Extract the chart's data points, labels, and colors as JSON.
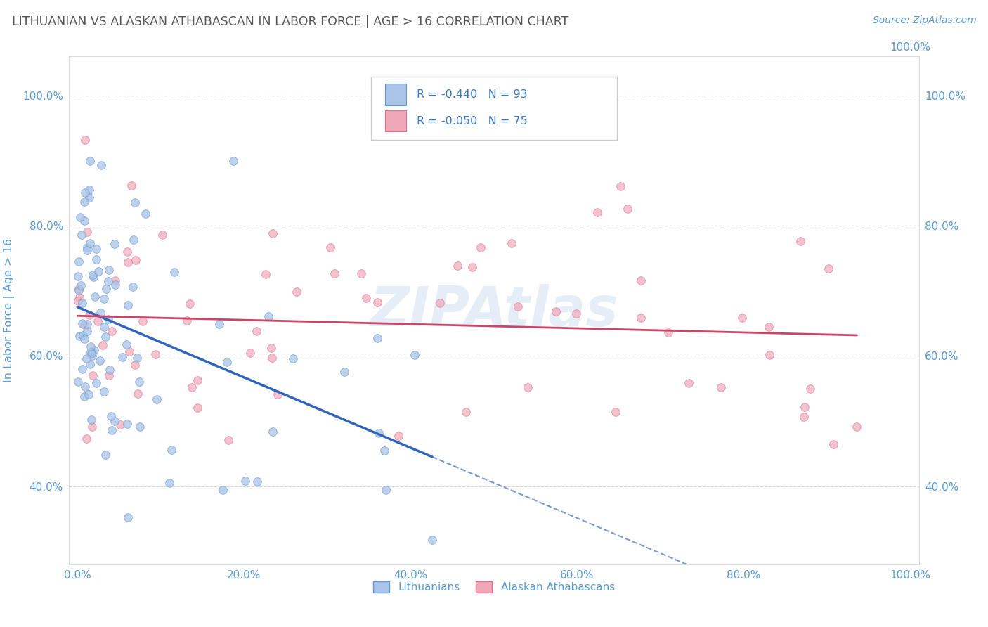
{
  "title": "LITHUANIAN VS ALASKAN ATHABASCAN IN LABOR FORCE | AGE > 16 CORRELATION CHART",
  "source": "Source: ZipAtlas.com",
  "ylabel": "In Labor Force | Age > 16",
  "xlim": [
    -0.01,
    1.01
  ],
  "ylim": [
    0.28,
    1.06
  ],
  "xticks": [
    0.0,
    0.2,
    0.4,
    0.6,
    0.8,
    1.0
  ],
  "xticklabels": [
    "0.0%",
    "20.0%",
    "40.0%",
    "60.0%",
    "80.0%",
    "100.0%"
  ],
  "yticks": [
    0.4,
    0.6,
    0.8,
    1.0
  ],
  "yticklabels": [
    "40.0%",
    "60.0%",
    "80.0%",
    "100.0%"
  ],
  "color_blue_fill": "#aac4e8",
  "color_pink_fill": "#f0a8b8",
  "color_blue_edge": "#6699cc",
  "color_pink_edge": "#e07090",
  "color_blue_line": "#3366bb",
  "color_pink_line": "#cc4466",
  "label1": "Lithuanians",
  "label2": "Alaskan Athabascans",
  "R1": -0.44,
  "R2": -0.05,
  "N1": 93,
  "N2": 75,
  "watermark": "ZIPAtlas",
  "background_color": "#ffffff",
  "grid_color": "#cccccc",
  "title_color": "#555555",
  "axis_color": "#5b9bd5",
  "legend_text_color": "#3a7abf",
  "seed1": 7,
  "seed2": 13
}
